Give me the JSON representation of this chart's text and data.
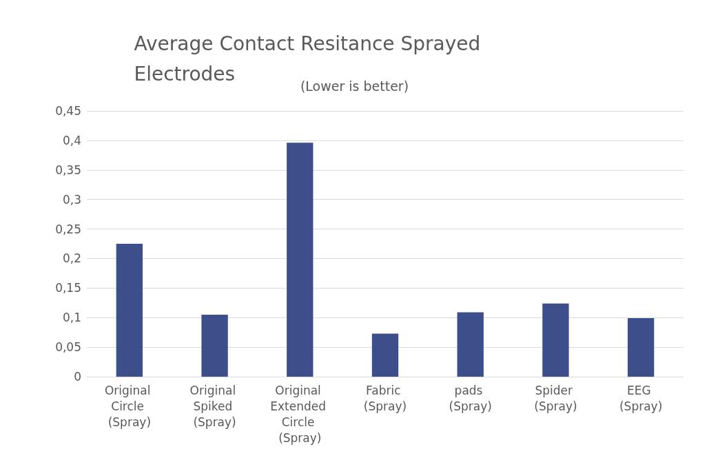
{
  "chart_data": {
    "type": "bar",
    "title": "Average Contact Resitance Sprayed Electrodes",
    "subtitle": "(Lower is better)",
    "categories": [
      "Original Circle (Spray)",
      "Original Spiked (Spray)",
      "Original Extended Circle (Spray)",
      "Fabric (Spray)",
      "pads (Spray)",
      "Spider (Spray)",
      "EEG (Spray)"
    ],
    "values": [
      0.225,
      0.105,
      0.396,
      0.073,
      0.109,
      0.124,
      0.099
    ],
    "color": "#3d4f8a",
    "ylim": [
      0,
      0.45
    ],
    "yticks": [
      0,
      {
        "value": 0.05,
        "label": "0,05"
      },
      {
        "value": 0.1,
        "label": "0,1"
      },
      {
        "value": 0.15,
        "label": "0,15"
      },
      {
        "value": 0.2,
        "label": "0,2"
      },
      {
        "value": 0.25,
        "label": "0,25"
      },
      {
        "value": 0.3,
        "label": "0,3"
      },
      {
        "value": 0.35,
        "label": "0,35"
      },
      {
        "value": 0.4,
        "label": "0,4"
      },
      {
        "value": 0.45,
        "label": "0,45"
      }
    ],
    "grid": "y"
  }
}
